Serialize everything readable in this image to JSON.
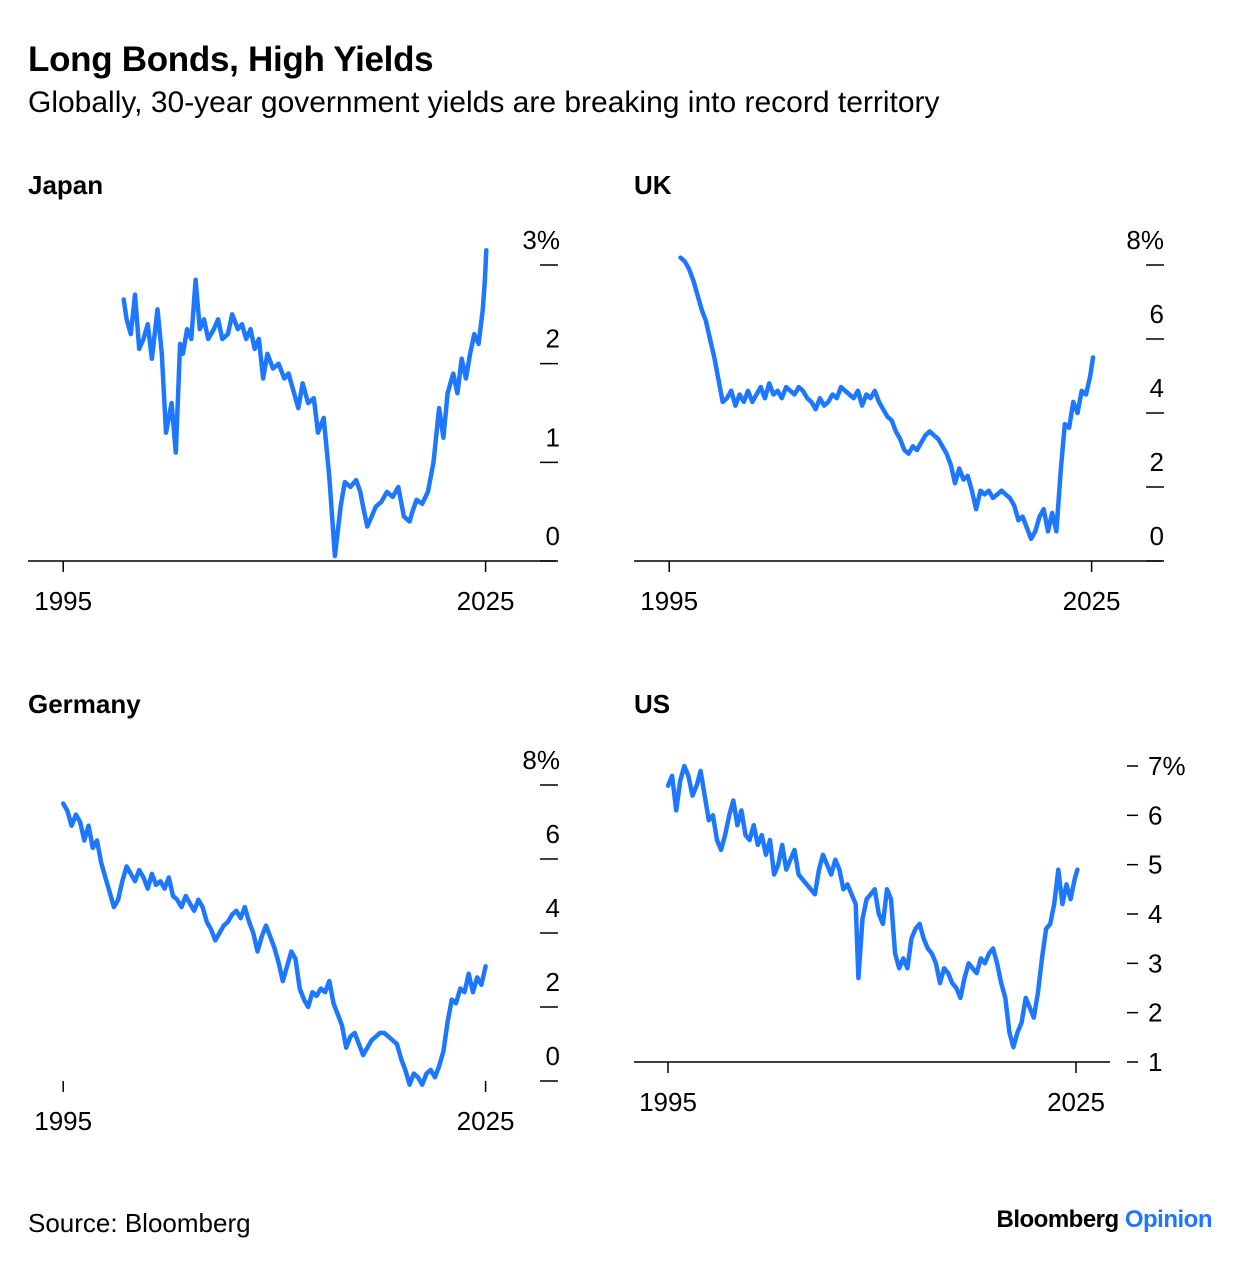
{
  "title": "Long Bonds, High Yields",
  "subtitle": "Globally, 30-year government yields are breaking into record territory",
  "source": "Source: Bloomberg",
  "brand": {
    "name": "Bloomberg",
    "suffix": "Opinion",
    "suffix_color": "#1e78ff"
  },
  "line_color": "#1e78ff",
  "chart_data": [
    {
      "type": "line",
      "title": "Japan",
      "x_ticks": [
        "1995",
        "2025"
      ],
      "y_ticks": [
        "0",
        "1",
        "2",
        "3%"
      ],
      "ylim": [
        0,
        3
      ],
      "xlim": [
        1992.5,
        2030
      ],
      "x": [
        1999.3,
        1999.5,
        1999.8,
        2000.1,
        2000.4,
        2000.7,
        2001.0,
        2001.3,
        2001.7,
        2002.0,
        2002.3,
        2002.7,
        2003.0,
        2003.3,
        2003.5,
        2003.8,
        2004.1,
        2004.4,
        2004.7,
        2005.0,
        2005.3,
        2005.7,
        2006.0,
        2006.3,
        2006.7,
        2007.0,
        2007.4,
        2007.7,
        2008.0,
        2008.3,
        2008.6,
        2008.9,
        2009.2,
        2009.5,
        2009.9,
        2010.3,
        2010.7,
        2011.0,
        2011.4,
        2011.7,
        2012.0,
        2012.4,
        2012.8,
        2013.1,
        2013.5,
        2013.9,
        2014.3,
        2014.7,
        2015.0,
        2015.4,
        2015.8,
        2016.1,
        2016.3,
        2016.6,
        2016.9,
        2017.2,
        2017.6,
        2018.0,
        2018.4,
        2018.8,
        2019.2,
        2019.6,
        2019.8,
        2020.1,
        2020.5,
        2020.9,
        2021.3,
        2021.7,
        2022.0,
        2022.3,
        2022.7,
        2023.0,
        2023.3,
        2023.6,
        2023.9,
        2024.2,
        2024.5,
        2024.8,
        2024.95,
        2025.05
      ],
      "y": [
        2.65,
        2.45,
        2.3,
        2.7,
        2.15,
        2.25,
        2.4,
        2.05,
        2.55,
        2.1,
        1.3,
        1.6,
        1.1,
        2.2,
        2.1,
        2.35,
        2.25,
        2.85,
        2.35,
        2.45,
        2.25,
        2.35,
        2.45,
        2.25,
        2.3,
        2.5,
        2.35,
        2.4,
        2.25,
        2.35,
        2.15,
        2.25,
        1.85,
        2.1,
        1.95,
        2.0,
        1.85,
        1.9,
        1.7,
        1.55,
        1.8,
        1.6,
        1.65,
        1.3,
        1.45,
        0.85,
        0.05,
        0.55,
        0.8,
        0.75,
        0.82,
        0.7,
        0.55,
        0.35,
        0.45,
        0.55,
        0.6,
        0.7,
        0.65,
        0.75,
        0.45,
        0.4,
        0.5,
        0.62,
        0.58,
        0.7,
        1.0,
        1.55,
        1.25,
        1.7,
        1.9,
        1.7,
        2.05,
        1.85,
        2.1,
        2.3,
        2.2,
        2.55,
        2.85,
        3.15
      ],
      "x_axis": {
        "min": 1992.5,
        "max": 2030
      }
    },
    {
      "type": "line",
      "title": "UK",
      "x_ticks": [
        "1995",
        "2025"
      ],
      "y_ticks": [
        "0",
        "2",
        "4",
        "6",
        "8%"
      ],
      "ylim": [
        0,
        8
      ],
      "xlim": [
        1992.5,
        2030
      ],
      "x": [
        1995.8,
        1996.1,
        1996.4,
        1996.7,
        1997.0,
        1997.3,
        1997.6,
        1997.9,
        1998.2,
        1998.5,
        1998.8,
        1999.1,
        1999.4,
        1999.7,
        2000.0,
        2000.3,
        2000.6,
        2000.9,
        2001.2,
        2001.5,
        2001.8,
        2002.1,
        2002.4,
        2002.7,
        2003.0,
        2003.3,
        2003.6,
        2003.9,
        2004.2,
        2004.5,
        2004.8,
        2005.1,
        2005.4,
        2005.7,
        2006.0,
        2006.3,
        2006.6,
        2006.9,
        2007.2,
        2007.5,
        2007.8,
        2008.1,
        2008.4,
        2008.7,
        2009.0,
        2009.3,
        2009.6,
        2009.9,
        2010.2,
        2010.5,
        2010.8,
        2011.1,
        2011.4,
        2011.7,
        2012.0,
        2012.3,
        2012.6,
        2012.9,
        2013.2,
        2013.5,
        2013.8,
        2014.1,
        2014.4,
        2014.7,
        2015.0,
        2015.3,
        2015.6,
        2015.9,
        2016.2,
        2016.5,
        2016.8,
        2017.1,
        2017.4,
        2017.7,
        2018.0,
        2018.3,
        2018.6,
        2018.9,
        2019.2,
        2019.5,
        2019.8,
        2020.1,
        2020.4,
        2020.7,
        2021.0,
        2021.3,
        2021.6,
        2021.9,
        2022.2,
        2022.5,
        2022.8,
        2023.1,
        2023.4,
        2023.7,
        2024.0,
        2024.3,
        2024.6,
        2024.9,
        2025.1
      ],
      "y": [
        8.2,
        8.1,
        7.9,
        7.6,
        7.2,
        6.8,
        6.5,
        6.0,
        5.5,
        4.9,
        4.3,
        4.4,
        4.6,
        4.2,
        4.5,
        4.3,
        4.6,
        4.3,
        4.5,
        4.7,
        4.4,
        4.8,
        4.5,
        4.6,
        4.4,
        4.7,
        4.6,
        4.5,
        4.7,
        4.6,
        4.4,
        4.3,
        4.1,
        4.4,
        4.2,
        4.3,
        4.5,
        4.4,
        4.7,
        4.6,
        4.5,
        4.4,
        4.6,
        4.2,
        4.5,
        4.4,
        4.6,
        4.3,
        4.1,
        3.9,
        3.8,
        3.5,
        3.3,
        3.0,
        2.9,
        3.1,
        3.0,
        3.2,
        3.4,
        3.5,
        3.4,
        3.3,
        3.1,
        2.9,
        2.6,
        2.1,
        2.5,
        2.2,
        2.3,
        1.9,
        1.4,
        1.9,
        1.8,
        1.9,
        1.7,
        1.8,
        1.9,
        1.8,
        1.7,
        1.5,
        1.1,
        1.2,
        0.9,
        0.6,
        0.8,
        1.2,
        1.4,
        0.8,
        1.3,
        0.8,
        2.4,
        3.7,
        3.6,
        4.3,
        4.0,
        4.6,
        4.5,
        5.0,
        5.5
      ],
      "x_axis": {
        "min": 1992.5,
        "max": 2030
      }
    },
    {
      "type": "line",
      "title": "Germany",
      "x_ticks": [
        "1995",
        "2025"
      ],
      "y_ticks": [
        "0",
        "2",
        "4",
        "6",
        "8%"
      ],
      "ylim": [
        0,
        8
      ],
      "xlim": [
        1992.5,
        2030
      ],
      "x": [
        1995.0,
        1995.3,
        1995.6,
        1995.9,
        1996.2,
        1996.5,
        1996.8,
        1997.1,
        1997.4,
        1997.7,
        1998.0,
        1998.3,
        1998.6,
        1998.9,
        1999.2,
        1999.5,
        1999.8,
        2000.1,
        2000.4,
        2000.7,
        2001.0,
        2001.3,
        2001.6,
        2001.9,
        2002.2,
        2002.5,
        2002.8,
        2003.1,
        2003.4,
        2003.7,
        2004.0,
        2004.3,
        2004.6,
        2004.9,
        2005.2,
        2005.5,
        2005.8,
        2006.1,
        2006.4,
        2006.7,
        2007.0,
        2007.3,
        2007.6,
        2007.9,
        2008.2,
        2008.5,
        2008.8,
        2009.1,
        2009.4,
        2009.7,
        2010.0,
        2010.3,
        2010.6,
        2010.9,
        2011.2,
        2011.5,
        2011.8,
        2012.1,
        2012.4,
        2012.7,
        2013.0,
        2013.3,
        2013.6,
        2013.9,
        2014.2,
        2014.5,
        2014.8,
        2015.1,
        2015.4,
        2015.7,
        2016.0,
        2016.3,
        2016.6,
        2016.9,
        2017.2,
        2017.5,
        2017.8,
        2018.1,
        2018.4,
        2018.7,
        2019.0,
        2019.3,
        2019.6,
        2019.9,
        2020.2,
        2020.5,
        2020.8,
        2021.1,
        2021.4,
        2021.7,
        2022.0,
        2022.3,
        2022.6,
        2022.9,
        2023.2,
        2023.5,
        2023.8,
        2024.1,
        2024.4,
        2024.7,
        2025.0
      ],
      "y": [
        7.5,
        7.3,
        6.9,
        7.2,
        7.0,
        6.5,
        6.9,
        6.3,
        6.5,
        5.9,
        5.5,
        5.1,
        4.7,
        4.9,
        5.4,
        5.8,
        5.6,
        5.4,
        5.7,
        5.5,
        5.2,
        5.6,
        5.3,
        5.4,
        5.2,
        5.5,
        5.0,
        4.9,
        4.7,
        5.0,
        4.8,
        4.6,
        4.9,
        4.7,
        4.3,
        4.1,
        3.8,
        4.0,
        4.2,
        4.3,
        4.5,
        4.6,
        4.4,
        4.7,
        4.3,
        4.0,
        3.5,
        3.9,
        4.2,
        3.9,
        3.6,
        3.2,
        2.7,
        3.1,
        3.5,
        3.3,
        2.5,
        2.2,
        2.0,
        2.4,
        2.3,
        2.5,
        2.4,
        2.7,
        2.1,
        1.8,
        1.5,
        0.9,
        1.2,
        1.3,
        1.0,
        0.7,
        0.9,
        1.1,
        1.2,
        1.3,
        1.3,
        1.2,
        1.1,
        1.0,
        0.6,
        0.3,
        -0.1,
        0.2,
        0.1,
        -0.1,
        0.2,
        0.3,
        0.1,
        0.4,
        0.8,
        1.6,
        2.2,
        2.1,
        2.5,
        2.4,
        2.9,
        2.4,
        2.8,
        2.6,
        3.1
      ],
      "x_axis": {
        "min": 1992.5,
        "max": 2030
      }
    },
    {
      "type": "line",
      "title": "US",
      "x_ticks": [
        "1995",
        "2025"
      ],
      "y_ticks": [
        "1",
        "2",
        "3",
        "4",
        "5",
        "6",
        "7%"
      ],
      "ylim": [
        1,
        7
      ],
      "xlim": [
        1992.5,
        2027.5
      ],
      "x": [
        1995.0,
        1995.3,
        1995.6,
        1995.9,
        1996.2,
        1996.5,
        1996.8,
        1997.1,
        1997.4,
        1997.7,
        1998.0,
        1998.3,
        1998.6,
        1998.9,
        1999.2,
        1999.5,
        1999.8,
        2000.1,
        2000.4,
        2000.7,
        2001.0,
        2001.3,
        2001.6,
        2001.9,
        2002.2,
        2002.5,
        2002.8,
        2003.1,
        2003.4,
        2003.7,
        2004.0,
        2004.3,
        2004.6,
        2004.9,
        2005.2,
        2005.5,
        2005.8,
        2006.1,
        2006.4,
        2006.7,
        2007.0,
        2007.3,
        2007.6,
        2007.9,
        2008.2,
        2008.5,
        2008.8,
        2009.0,
        2009.3,
        2009.6,
        2009.9,
        2010.2,
        2010.5,
        2010.8,
        2011.1,
        2011.4,
        2011.7,
        2012.0,
        2012.3,
        2012.6,
        2012.9,
        2013.2,
        2013.5,
        2013.8,
        2014.1,
        2014.4,
        2014.7,
        2015.0,
        2015.3,
        2015.6,
        2015.9,
        2016.2,
        2016.5,
        2016.8,
        2017.1,
        2017.4,
        2017.7,
        2018.0,
        2018.3,
        2018.6,
        2018.9,
        2019.2,
        2019.5,
        2019.8,
        2020.1,
        2020.4,
        2020.7,
        2021.0,
        2021.3,
        2021.6,
        2021.9,
        2022.2,
        2022.5,
        2022.8,
        2023.1,
        2023.4,
        2023.7,
        2024.0,
        2024.3,
        2024.6,
        2024.9,
        2025.1
      ],
      "y": [
        6.6,
        6.8,
        6.1,
        6.7,
        7.0,
        6.8,
        6.4,
        6.6,
        6.9,
        6.4,
        5.9,
        6.0,
        5.5,
        5.3,
        5.6,
        6.0,
        6.3,
        5.8,
        6.1,
        5.6,
        5.5,
        5.8,
        5.4,
        5.6,
        5.2,
        5.5,
        4.8,
        5.0,
        5.4,
        4.9,
        5.1,
        5.3,
        4.8,
        4.7,
        4.6,
        4.5,
        4.4,
        4.9,
        5.2,
        5.0,
        4.8,
        5.1,
        4.9,
        4.5,
        4.6,
        4.4,
        4.2,
        2.7,
        3.9,
        4.3,
        4.4,
        4.5,
        4.0,
        3.8,
        4.5,
        4.3,
        3.2,
        2.9,
        3.1,
        2.9,
        3.5,
        3.7,
        3.8,
        3.5,
        3.3,
        3.2,
        3.0,
        2.6,
        2.9,
        2.8,
        2.6,
        2.5,
        2.3,
        2.7,
        3.0,
        2.9,
        2.8,
        3.1,
        3.0,
        3.2,
        3.3,
        3.0,
        2.6,
        2.3,
        1.6,
        1.3,
        1.6,
        1.8,
        2.3,
        2.1,
        1.9,
        2.4,
        3.1,
        3.7,
        3.8,
        4.2,
        4.9,
        4.2,
        4.6,
        4.3,
        4.7,
        4.9
      ],
      "x_axis": {
        "min": 1992.5,
        "max": 2027.5
      }
    }
  ]
}
